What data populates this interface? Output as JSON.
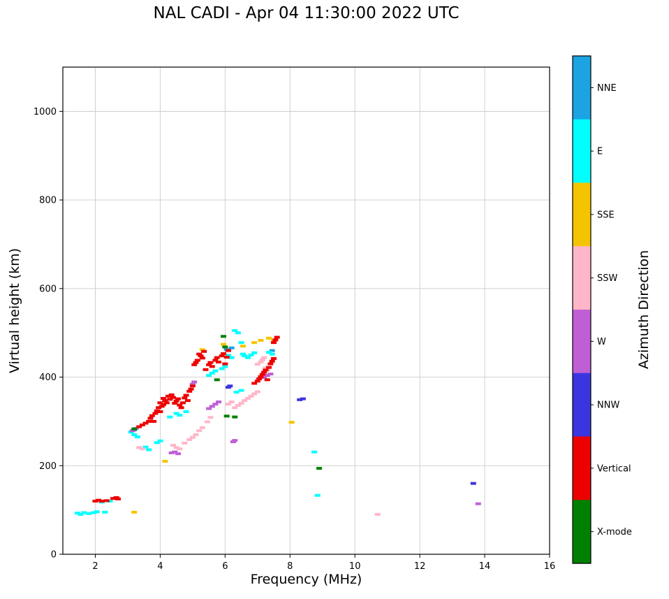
{
  "title": "NAL CADI - Apr 04 11:30:00 2022 UTC",
  "axes": {
    "xlabel": "Frequency (MHz)",
    "ylabel": "Virtual height (km)",
    "xlim": [
      1,
      16
    ],
    "ylim": [
      0,
      1100
    ],
    "xticks": [
      2,
      4,
      6,
      8,
      10,
      12,
      14,
      16
    ],
    "yticks": [
      0,
      200,
      400,
      600,
      800,
      1000
    ],
    "grid": true,
    "grid_color": "#cccccc"
  },
  "colorbar": {
    "label": "Azimuth Direction",
    "entries": [
      {
        "label": "NNE",
        "color": "#1ba3e2"
      },
      {
        "label": "E",
        "color": "#00ffff"
      },
      {
        "label": "SSE",
        "color": "#f5c400"
      },
      {
        "label": "SSW",
        "color": "#ffb6c8"
      },
      {
        "label": "W",
        "color": "#bf5fd3"
      },
      {
        "label": "NNW",
        "color": "#3b35e0"
      },
      {
        "label": "Vertical",
        "color": "#ec0000"
      },
      {
        "label": "X-mode",
        "color": "#008000"
      }
    ]
  },
  "chart_data": {
    "type": "scatter",
    "title": "NAL CADI - Apr 04 11:30:00 2022 UTC",
    "xlabel": "Frequency (MHz)",
    "ylabel": "Virtual height (km)",
    "xlim": [
      1,
      16
    ],
    "ylim": [
      0,
      1100
    ],
    "legend_title": "Azimuth Direction",
    "series": [
      {
        "name": "NNE",
        "color": "#1ba3e2",
        "points": [
          [
            3.2,
            281
          ],
          [
            6.05,
            462
          ],
          [
            6.2,
            466
          ],
          [
            7.45,
            460
          ]
        ]
      },
      {
        "name": "E",
        "color": "#00ffff",
        "points": [
          [
            1.45,
            93
          ],
          [
            1.55,
            90
          ],
          [
            1.65,
            94
          ],
          [
            1.8,
            92
          ],
          [
            1.95,
            94
          ],
          [
            2.05,
            96
          ],
          [
            2.2,
            118
          ],
          [
            2.3,
            95
          ],
          [
            2.45,
            120
          ],
          [
            3.1,
            276
          ],
          [
            3.2,
            270
          ],
          [
            3.3,
            265
          ],
          [
            3.55,
            242
          ],
          [
            3.65,
            236
          ],
          [
            3.9,
            252
          ],
          [
            4.0,
            256
          ],
          [
            4.3,
            310
          ],
          [
            4.5,
            318
          ],
          [
            4.6,
            314
          ],
          [
            4.8,
            322
          ],
          [
            5.5,
            404
          ],
          [
            5.6,
            409
          ],
          [
            5.7,
            414
          ],
          [
            5.9,
            419
          ],
          [
            6.0,
            424
          ],
          [
            6.1,
            449
          ],
          [
            6.2,
            444
          ],
          [
            6.3,
            505
          ],
          [
            6.4,
            500
          ],
          [
            6.5,
            478
          ],
          [
            6.55,
            452
          ],
          [
            6.6,
            448
          ],
          [
            6.7,
            444
          ],
          [
            6.8,
            450
          ],
          [
            6.35,
            366
          ],
          [
            6.5,
            370
          ],
          [
            6.9,
            455
          ],
          [
            7.35,
            456
          ],
          [
            7.45,
            452
          ],
          [
            8.75,
            231
          ],
          [
            8.85,
            133
          ]
        ]
      },
      {
        "name": "SSE",
        "color": "#f5c400",
        "points": [
          [
            3.2,
            95
          ],
          [
            4.15,
            210
          ],
          [
            5.3,
            462
          ],
          [
            5.95,
            474
          ],
          [
            6.55,
            470
          ],
          [
            6.9,
            478
          ],
          [
            7.1,
            483
          ],
          [
            7.35,
            488
          ],
          [
            7.5,
            484
          ],
          [
            8.05,
            298
          ]
        ]
      },
      {
        "name": "SSW",
        "color": "#ffb6c8",
        "points": [
          [
            3.35,
            241
          ],
          [
            3.45,
            238
          ],
          [
            4.4,
            246
          ],
          [
            4.5,
            241
          ],
          [
            4.6,
            238
          ],
          [
            4.75,
            251
          ],
          [
            4.9,
            259
          ],
          [
            5.0,
            264
          ],
          [
            5.1,
            270
          ],
          [
            5.2,
            279
          ],
          [
            5.3,
            286
          ],
          [
            5.45,
            299
          ],
          [
            5.55,
            309
          ],
          [
            6.1,
            339
          ],
          [
            6.2,
            344
          ],
          [
            6.3,
            331
          ],
          [
            6.4,
            336
          ],
          [
            6.5,
            341
          ],
          [
            6.6,
            347
          ],
          [
            6.7,
            352
          ],
          [
            6.8,
            357
          ],
          [
            6.9,
            362
          ],
          [
            7.0,
            367
          ],
          [
            7.0,
            429
          ],
          [
            7.1,
            434
          ],
          [
            7.15,
            439
          ],
          [
            7.2,
            444
          ],
          [
            7.25,
            421
          ],
          [
            7.3,
            416
          ],
          [
            10.7,
            90
          ]
        ]
      },
      {
        "name": "W",
        "color": "#bf5fd3",
        "points": [
          [
            3.15,
            279
          ],
          [
            3.25,
            284
          ],
          [
            4.35,
            229
          ],
          [
            4.45,
            231
          ],
          [
            4.55,
            227
          ],
          [
            5.0,
            384
          ],
          [
            5.05,
            389
          ],
          [
            5.5,
            329
          ],
          [
            5.6,
            334
          ],
          [
            5.7,
            339
          ],
          [
            5.8,
            344
          ],
          [
            6.25,
            254
          ],
          [
            6.3,
            257
          ],
          [
            7.2,
            399
          ],
          [
            7.3,
            404
          ],
          [
            7.4,
            407
          ],
          [
            13.8,
            114
          ]
        ]
      },
      {
        "name": "NNW",
        "color": "#3b35e0",
        "points": [
          [
            6.1,
            377
          ],
          [
            6.15,
            380
          ],
          [
            8.3,
            349
          ],
          [
            8.4,
            351
          ],
          [
            13.65,
            160
          ]
        ]
      },
      {
        "name": "Vertical",
        "color": "#ec0000",
        "points": [
          [
            2.0,
            120
          ],
          [
            2.1,
            122
          ],
          [
            2.2,
            120
          ],
          [
            2.35,
            121
          ],
          [
            2.55,
            126
          ],
          [
            2.65,
            128
          ],
          [
            2.7,
            125
          ],
          [
            3.35,
            288
          ],
          [
            3.45,
            292
          ],
          [
            3.55,
            296
          ],
          [
            3.65,
            300
          ],
          [
            3.7,
            307
          ],
          [
            3.75,
            313
          ],
          [
            3.8,
            300
          ],
          [
            3.85,
            318
          ],
          [
            3.9,
            324
          ],
          [
            3.95,
            331
          ],
          [
            4.0,
            322
          ],
          [
            4.0,
            342
          ],
          [
            4.05,
            334
          ],
          [
            4.1,
            338
          ],
          [
            4.1,
            352
          ],
          [
            4.15,
            347
          ],
          [
            4.2,
            342
          ],
          [
            4.25,
            357
          ],
          [
            4.3,
            350
          ],
          [
            4.35,
            360
          ],
          [
            4.4,
            354
          ],
          [
            4.45,
            341
          ],
          [
            4.5,
            346
          ],
          [
            4.55,
            351
          ],
          [
            4.6,
            337
          ],
          [
            4.65,
            331
          ],
          [
            4.7,
            342
          ],
          [
            4.75,
            353
          ],
          [
            4.8,
            359
          ],
          [
            4.85,
            347
          ],
          [
            4.9,
            368
          ],
          [
            4.95,
            373
          ],
          [
            5.0,
            380
          ],
          [
            5.05,
            428
          ],
          [
            5.1,
            433
          ],
          [
            5.15,
            438
          ],
          [
            5.2,
            452
          ],
          [
            5.25,
            448
          ],
          [
            5.3,
            443
          ],
          [
            5.35,
            458
          ],
          [
            5.4,
            417
          ],
          [
            5.5,
            428
          ],
          [
            5.55,
            433
          ],
          [
            5.6,
            424
          ],
          [
            5.7,
            438
          ],
          [
            5.75,
            444
          ],
          [
            5.8,
            434
          ],
          [
            5.9,
            448
          ],
          [
            5.95,
            453
          ],
          [
            6.0,
            430
          ],
          [
            6.05,
            445
          ],
          [
            6.1,
            460
          ],
          [
            6.9,
            386
          ],
          [
            7.0,
            391
          ],
          [
            7.05,
            396
          ],
          [
            7.1,
            401
          ],
          [
            7.15,
            406
          ],
          [
            7.2,
            411
          ],
          [
            7.25,
            416
          ],
          [
            7.3,
            394
          ],
          [
            7.35,
            422
          ],
          [
            7.4,
            430
          ],
          [
            7.45,
            436
          ],
          [
            7.5,
            442
          ],
          [
            7.5,
            478
          ],
          [
            7.55,
            484
          ],
          [
            7.6,
            490
          ]
        ]
      },
      {
        "name": "X-mode",
        "color": "#008000",
        "points": [
          [
            3.2,
            283
          ],
          [
            5.75,
            394
          ],
          [
            5.95,
            492
          ],
          [
            6.0,
            468
          ],
          [
            6.05,
            312
          ],
          [
            6.3,
            310
          ],
          [
            8.9,
            194
          ]
        ]
      }
    ]
  }
}
